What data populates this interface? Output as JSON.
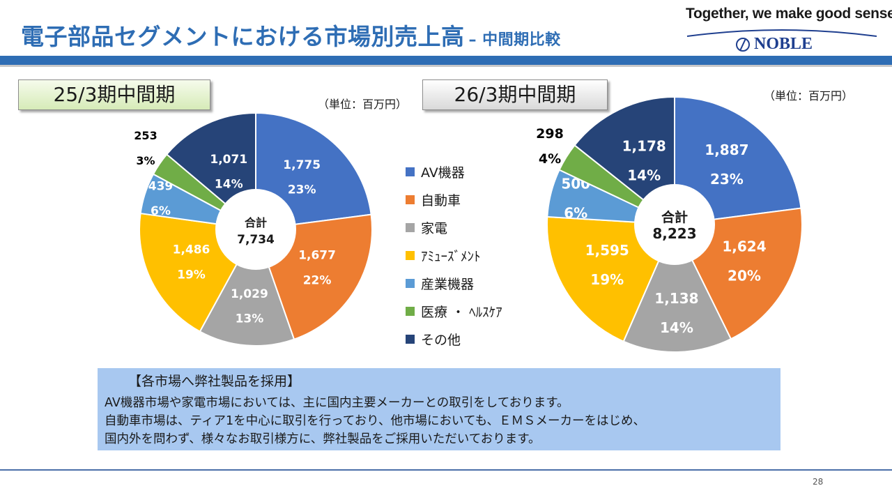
{
  "header": {
    "title": "電子部品セグメントにおける市場別売上高",
    "subtitle": "– 中間期比較",
    "tagline": "Together, we make good sense.",
    "logo_text": "NOBLE"
  },
  "periods": [
    "25/3期中間期",
    "26/3期中間期"
  ],
  "unit_label": "（単位：百万円）",
  "legend": [
    {
      "label": "AV機器",
      "color": "#4472c4"
    },
    {
      "label": "自動車",
      "color": "#ed7d31"
    },
    {
      "label": "家電",
      "color": "#a5a5a5"
    },
    {
      "label": "ｱﾐｭｰｽﾞﾒﾝﾄ",
      "color": "#ffc000"
    },
    {
      "label": "産業機器",
      "color": "#5b9bd5"
    },
    {
      "label": "医療 ・ ﾍﾙｽｹｱ",
      "color": "#70ad47"
    },
    {
      "label": "その他",
      "color": "#264478"
    }
  ],
  "chart_data": [
    {
      "type": "pie",
      "title": "25/3期中間期",
      "unit": "百万円",
      "center_label": "合計",
      "total": "7,734",
      "categories": [
        "AV機器",
        "自動車",
        "家電",
        "ｱﾐｭｰｽﾞﾒﾝﾄ",
        "産業機器",
        "医療 ・ ﾍﾙｽｹｱ",
        "その他"
      ],
      "values": [
        1775,
        1677,
        1029,
        1486,
        439,
        253,
        1071
      ],
      "value_labels": [
        "1,775",
        "1,677",
        "1,029",
        "1,486",
        "439",
        "253",
        "1,071"
      ],
      "percent_labels": [
        "23%",
        "22%",
        "13%",
        "19%",
        "6%",
        "3%",
        "14%"
      ]
    },
    {
      "type": "pie",
      "title": "26/3期中間期",
      "unit": "百万円",
      "center_label": "合計",
      "total": "8,223",
      "categories": [
        "AV機器",
        "自動車",
        "家電",
        "ｱﾐｭｰｽﾞﾒﾝﾄ",
        "産業機器",
        "医療 ・ ﾍﾙｽｹｱ",
        "その他"
      ],
      "values": [
        1887,
        1624,
        1138,
        1595,
        500,
        298,
        1178
      ],
      "value_labels": [
        "1,887",
        "1,624",
        "1,138",
        "1,595",
        "500",
        "298",
        "1,178"
      ],
      "percent_labels": [
        "23%",
        "20%",
        "14%",
        "19%",
        "6%",
        "4%",
        "14%"
      ]
    }
  ],
  "note": {
    "heading": "【各市場へ弊社製品を採用】",
    "lines": [
      " AV機器市場や家電市場においては、主に国内主要メーカーとの取引をしております。",
      "自動車市場は、ティア1を中心に取引を行っており、他市場においても、ＥＭＳメーカーをはじめ、",
      "国内外を問わず、様々なお取引様方に、弊社製品をご採用いただいております。"
    ]
  },
  "page_number": "28"
}
